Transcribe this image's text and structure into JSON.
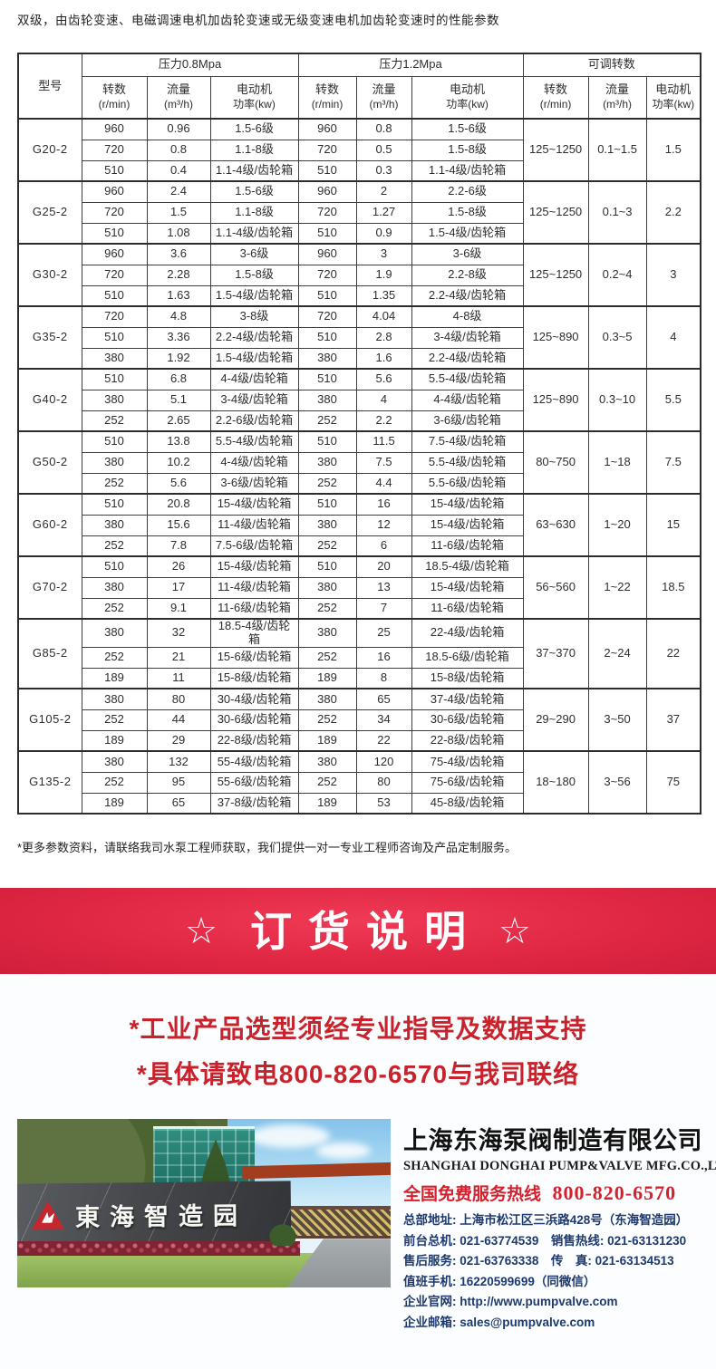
{
  "title": "双级，由齿轮变速、电磁调速电机加齿轮变速或无级变速电机加齿轮变速时的性能参数",
  "table": {
    "model_header": "型号",
    "group_headers": [
      "压力0.8Mpa",
      "压力1.2Mpa",
      "可调转数"
    ],
    "col_speed": "转数",
    "col_speed_unit": "(r/min)",
    "col_flow": "流量",
    "col_flow_unit": "(m³/h)",
    "col_motor": "电动机",
    "col_motor_unit": "功率(kw)",
    "rows": [
      {
        "model": "G20-2",
        "p08": [
          [
            "960",
            "0.96",
            "1.5-6级"
          ],
          [
            "720",
            "0.8",
            "1.1-8级"
          ],
          [
            "510",
            "0.4",
            "1.1-4级/齿轮箱"
          ]
        ],
        "p12": [
          [
            "960",
            "0.8",
            "1.5-6级"
          ],
          [
            "720",
            "0.5",
            "1.5-8级"
          ],
          [
            "510",
            "0.3",
            "1.1-4级/齿轮箱"
          ]
        ],
        "adj": [
          "125~1250",
          "0.1~1.5",
          "1.5"
        ]
      },
      {
        "model": "G25-2",
        "p08": [
          [
            "960",
            "2.4",
            "1.5-6级"
          ],
          [
            "720",
            "1.5",
            "1.1-8级"
          ],
          [
            "510",
            "1.08",
            "1.1-4级/齿轮箱"
          ]
        ],
        "p12": [
          [
            "960",
            "2",
            "2.2-6级"
          ],
          [
            "720",
            "1.27",
            "1.5-8级"
          ],
          [
            "510",
            "0.9",
            "1.5-4级/齿轮箱"
          ]
        ],
        "adj": [
          "125~1250",
          "0.1~3",
          "2.2"
        ]
      },
      {
        "model": "G30-2",
        "p08": [
          [
            "960",
            "3.6",
            "3-6级"
          ],
          [
            "720",
            "2.28",
            "1.5-8级"
          ],
          [
            "510",
            "1.63",
            "1.5-4级/齿轮箱"
          ]
        ],
        "p12": [
          [
            "960",
            "3",
            "3-6级"
          ],
          [
            "720",
            "1.9",
            "2.2-8级"
          ],
          [
            "510",
            "1.35",
            "2.2-4级/齿轮箱"
          ]
        ],
        "adj": [
          "125~1250",
          "0.2~4",
          "3"
        ]
      },
      {
        "model": "G35-2",
        "p08": [
          [
            "720",
            "4.8",
            "3-8级"
          ],
          [
            "510",
            "3.36",
            "2.2-4级/齿轮箱"
          ],
          [
            "380",
            "1.92",
            "1.5-4级/齿轮箱"
          ]
        ],
        "p12": [
          [
            "720",
            "4.04",
            "4-8级"
          ],
          [
            "510",
            "2.8",
            "3-4级/齿轮箱"
          ],
          [
            "380",
            "1.6",
            "2.2-4级/齿轮箱"
          ]
        ],
        "adj": [
          "125~890",
          "0.3~5",
          "4"
        ]
      },
      {
        "model": "G40-2",
        "p08": [
          [
            "510",
            "6.8",
            "4-4级/齿轮箱"
          ],
          [
            "380",
            "5.1",
            "3-4级/齿轮箱"
          ],
          [
            "252",
            "2.65",
            "2.2-6级/齿轮箱"
          ]
        ],
        "p12": [
          [
            "510",
            "5.6",
            "5.5-4级/齿轮箱"
          ],
          [
            "380",
            "4",
            "4-4级/齿轮箱"
          ],
          [
            "252",
            "2.2",
            "3-6级/齿轮箱"
          ]
        ],
        "adj": [
          "125~890",
          "0.3~10",
          "5.5"
        ]
      },
      {
        "model": "G50-2",
        "p08": [
          [
            "510",
            "13.8",
            "5.5-4级/齿轮箱"
          ],
          [
            "380",
            "10.2",
            "4-4级/齿轮箱"
          ],
          [
            "252",
            "5.6",
            "3-6级/齿轮箱"
          ]
        ],
        "p12": [
          [
            "510",
            "11.5",
            "7.5-4级/齿轮箱"
          ],
          [
            "380",
            "7.5",
            "5.5-4级/齿轮箱"
          ],
          [
            "252",
            "4.4",
            "5.5-6级/齿轮箱"
          ]
        ],
        "adj": [
          "80~750",
          "1~18",
          "7.5"
        ]
      },
      {
        "model": "G60-2",
        "p08": [
          [
            "510",
            "20.8",
            "15-4级/齿轮箱"
          ],
          [
            "380",
            "15.6",
            "11-4级/齿轮箱"
          ],
          [
            "252",
            "7.8",
            "7.5-6级/齿轮箱"
          ]
        ],
        "p12": [
          [
            "510",
            "16",
            "15-4级/齿轮箱"
          ],
          [
            "380",
            "12",
            "15-4级/齿轮箱"
          ],
          [
            "252",
            "6",
            "11-6级/齿轮箱"
          ]
        ],
        "adj": [
          "63~630",
          "1~20",
          "15"
        ]
      },
      {
        "model": "G70-2",
        "p08": [
          [
            "510",
            "26",
            "15-4级/齿轮箱"
          ],
          [
            "380",
            "17",
            "11-4级/齿轮箱"
          ],
          [
            "252",
            "9.1",
            "11-6级/齿轮箱"
          ]
        ],
        "p12": [
          [
            "510",
            "20",
            "18.5-4级/齿轮箱"
          ],
          [
            "380",
            "13",
            "15-4级/齿轮箱"
          ],
          [
            "252",
            "7",
            "11-6级/齿轮箱"
          ]
        ],
        "adj": [
          "56~560",
          "1~22",
          "18.5"
        ]
      },
      {
        "model": "G85-2",
        "p08": [
          [
            "380",
            "32",
            "18.5-4级/齿轮箱"
          ],
          [
            "252",
            "21",
            "15-6级/齿轮箱"
          ],
          [
            "189",
            "11",
            "15-8级/齿轮箱"
          ]
        ],
        "p12": [
          [
            "380",
            "25",
            "22-4级/齿轮箱"
          ],
          [
            "252",
            "16",
            "18.5-6级/齿轮箱"
          ],
          [
            "189",
            "8",
            "15-8级/齿轮箱"
          ]
        ],
        "adj": [
          "37~370",
          "2~24",
          "22"
        ]
      },
      {
        "model": "G105-2",
        "p08": [
          [
            "380",
            "80",
            "30-4级/齿轮箱"
          ],
          [
            "252",
            "44",
            "30-6级/齿轮箱"
          ],
          [
            "189",
            "29",
            "22-8级/齿轮箱"
          ]
        ],
        "p12": [
          [
            "380",
            "65",
            "37-4级/齿轮箱"
          ],
          [
            "252",
            "34",
            "30-6级/齿轮箱"
          ],
          [
            "189",
            "22",
            "22-8级/齿轮箱"
          ]
        ],
        "adj": [
          "29~290",
          "3~50",
          "37"
        ]
      },
      {
        "model": "G135-2",
        "p08": [
          [
            "380",
            "132",
            "55-4级/齿轮箱"
          ],
          [
            "252",
            "95",
            "55-6级/齿轮箱"
          ],
          [
            "189",
            "65",
            "37-8级/齿轮箱"
          ]
        ],
        "p12": [
          [
            "380",
            "120",
            "75-4级/齿轮箱"
          ],
          [
            "252",
            "80",
            "75-6级/齿轮箱"
          ],
          [
            "189",
            "53",
            "45-8级/齿轮箱"
          ]
        ],
        "adj": [
          "18~180",
          "3~56",
          "75"
        ]
      }
    ]
  },
  "note": "*更多参数资料，请联络我司水泵工程师获取，我们提供一对一专业工程师咨询及产品定制服务。",
  "banner": {
    "star_left": "☆",
    "text": "订货说明",
    "star_right": "☆",
    "bg_color": "#e02743"
  },
  "notice_lines": [
    "*工业产品选型须经专业指导及数据支持",
    "*具体请致电800-820-6570与我司联络"
  ],
  "company": {
    "name": "上海东海泵阀制造有限公司",
    "name_en": "SHANGHAI DONGHAI PUMP&VALVE MFG.CO.,LTD.",
    "hotline_label": "全国免费服务热线",
    "hotline_number": "800-820-6570",
    "hotline_color": "#d5212e",
    "contacts": [
      "总部地址: 上海市松江区三浜路428号（东海智造园）",
      "前台总机: 021-63774539　销售热线: 021-63131230",
      "售后服务: 021-63763338　传　真: 021-63134513",
      "值班手机: 16220599699（同微信）",
      "企业官网: http://www.pumpvalve.com",
      "企业邮箱: sales@pumpvalve.com"
    ]
  },
  "photo": {
    "sign_text": "東海智造园",
    "logo_name": "donghai-triangle-logo"
  }
}
